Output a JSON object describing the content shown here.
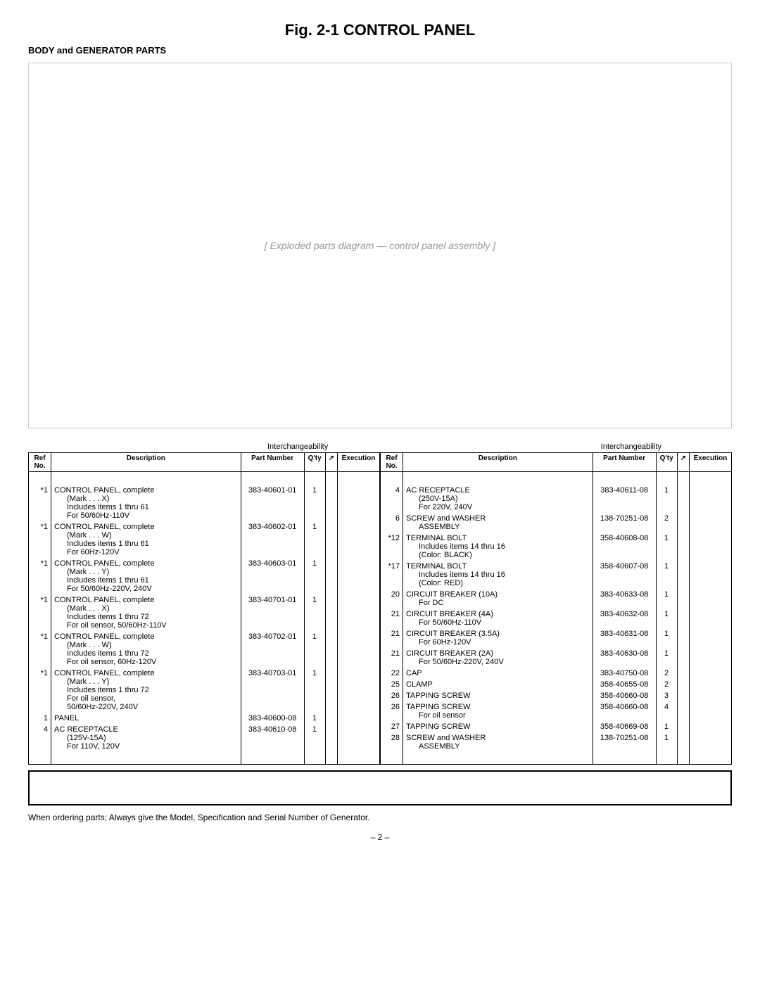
{
  "title": "Fig. 2-1   CONTROL PANEL",
  "subtitle": "BODY and GENERATOR PARTS",
  "diagram_placeholder": "[ Exploded parts diagram — control panel assembly ]",
  "interchangeability_label": "Interchangeability",
  "headers": {
    "ref": "Ref\nNo.",
    "desc": "Description",
    "part": "Part Number",
    "qty": "Q'ty",
    "inter": "",
    "exec": "Execution"
  },
  "left_rows": [
    {
      "ref": "*1",
      "desc": "CONTROL PANEL, complete",
      "sub": [
        "(Mark . . . X)",
        "Includes items 1 thru 61",
        "For 50/60Hz-110V"
      ],
      "part": "383-40601-01",
      "qty": "1"
    },
    {
      "ref": "*1",
      "desc": "CONTROL PANEL, complete",
      "sub": [
        "(Mark . . . W)",
        "Includes items 1 thru 61",
        "For 60Hz-120V"
      ],
      "part": "383-40602-01",
      "qty": "1"
    },
    {
      "ref": "*1",
      "desc": "CONTROL PANEL, complete",
      "sub": [
        "(Mark . . . Y)",
        "Includes items 1 thru 61",
        "For 50/60Hz-220V, 240V"
      ],
      "part": "383-40603-01",
      "qty": "1"
    },
    {
      "ref": "*1",
      "desc": "CONTROL PANEL, complete",
      "sub": [
        "(Mark . . . X)",
        "Includes items 1 thru 72",
        "For oil sensor, 50/60Hz-110V"
      ],
      "part": "383-40701-01",
      "qty": "1"
    },
    {
      "ref": "*1",
      "desc": "CONTROL PANEL, complete",
      "sub": [
        "(Mark . . . W)",
        "Includes items 1 thru 72",
        "For oil sensor, 60Hz-120V"
      ],
      "part": "383-40702-01",
      "qty": "1"
    },
    {
      "ref": "*1",
      "desc": "CONTROL PANEL, complete",
      "sub": [
        "(Mark . . . Y)",
        "Includes items 1 thru 72",
        "For oil sensor,",
        "50/60Hz-220V, 240V"
      ],
      "part": "383-40703-01",
      "qty": "1"
    },
    {
      "ref": "1",
      "desc": "PANEL",
      "sub": [],
      "part": "383-40600-08",
      "qty": "1"
    },
    {
      "ref": "4",
      "desc": "AC RECEPTACLE",
      "sub": [
        "(125V-15A)",
        "For 110V, 120V"
      ],
      "part": "383-40610-08",
      "qty": "1"
    }
  ],
  "right_rows": [
    {
      "ref": "4",
      "desc": "AC RECEPTACLE",
      "sub": [
        "(250V-15A)",
        "For 220V, 240V"
      ],
      "part": "383-40611-08",
      "qty": "1"
    },
    {
      "ref": "6",
      "desc": "SCREW and WASHER",
      "sub": [
        "ASSEMBLY"
      ],
      "part": "138-70251-08",
      "qty": "2"
    },
    {
      "ref": "*12",
      "desc": "TERMINAL BOLT",
      "sub": [
        "Includes items 14 thru 16",
        "(Color: BLACK)"
      ],
      "part": "358-40608-08",
      "qty": "1"
    },
    {
      "ref": "*17",
      "desc": "TERMINAL BOLT",
      "sub": [
        "Includes items 14 thru 16",
        "(Color: RED)"
      ],
      "part": "358-40607-08",
      "qty": "1"
    },
    {
      "ref": "20",
      "desc": "CIRCUIT BREAKER (10A)",
      "sub": [
        "For DC"
      ],
      "part": "383-40633-08",
      "qty": "1"
    },
    {
      "ref": "21",
      "desc": "CIRCUIT BREAKER (4A)",
      "sub": [
        "For 50/60Hz-110V"
      ],
      "part": "383-40632-08",
      "qty": "1"
    },
    {
      "ref": "21",
      "desc": "CIRCUIT BREAKER (3.5A)",
      "sub": [
        "For 60Hz-120V"
      ],
      "part": "383-40631-08",
      "qty": "1"
    },
    {
      "ref": "21",
      "desc": "CIRCUIT BREAKER (2A)",
      "sub": [
        "For 50/60Hz-220V, 240V"
      ],
      "part": "383-40630-08",
      "qty": "1"
    },
    {
      "ref": "22",
      "desc": "CAP",
      "sub": [],
      "part": "383-40750-08",
      "qty": "2"
    },
    {
      "ref": "25",
      "desc": "CLAMP",
      "sub": [],
      "part": "358-40655-08",
      "qty": "2"
    },
    {
      "ref": "26",
      "desc": "TAPPING SCREW",
      "sub": [],
      "part": "358-40660-08",
      "qty": "3"
    },
    {
      "ref": "26",
      "desc": "TAPPING SCREW",
      "sub": [
        "For oil sensor"
      ],
      "part": "358-40660-08",
      "qty": "4"
    },
    {
      "ref": "27",
      "desc": "TAPPING SCREW",
      "sub": [],
      "part": "358-40669-08",
      "qty": "1"
    },
    {
      "ref": "28",
      "desc": "SCREW and WASHER",
      "sub": [
        "ASSEMBLY"
      ],
      "part": "138-70251-08",
      "qty": "1"
    }
  ],
  "footer_note": "When ordering parts; Always give the Model, Specification and Serial Number of Generator.",
  "page_number": "– 2 –"
}
